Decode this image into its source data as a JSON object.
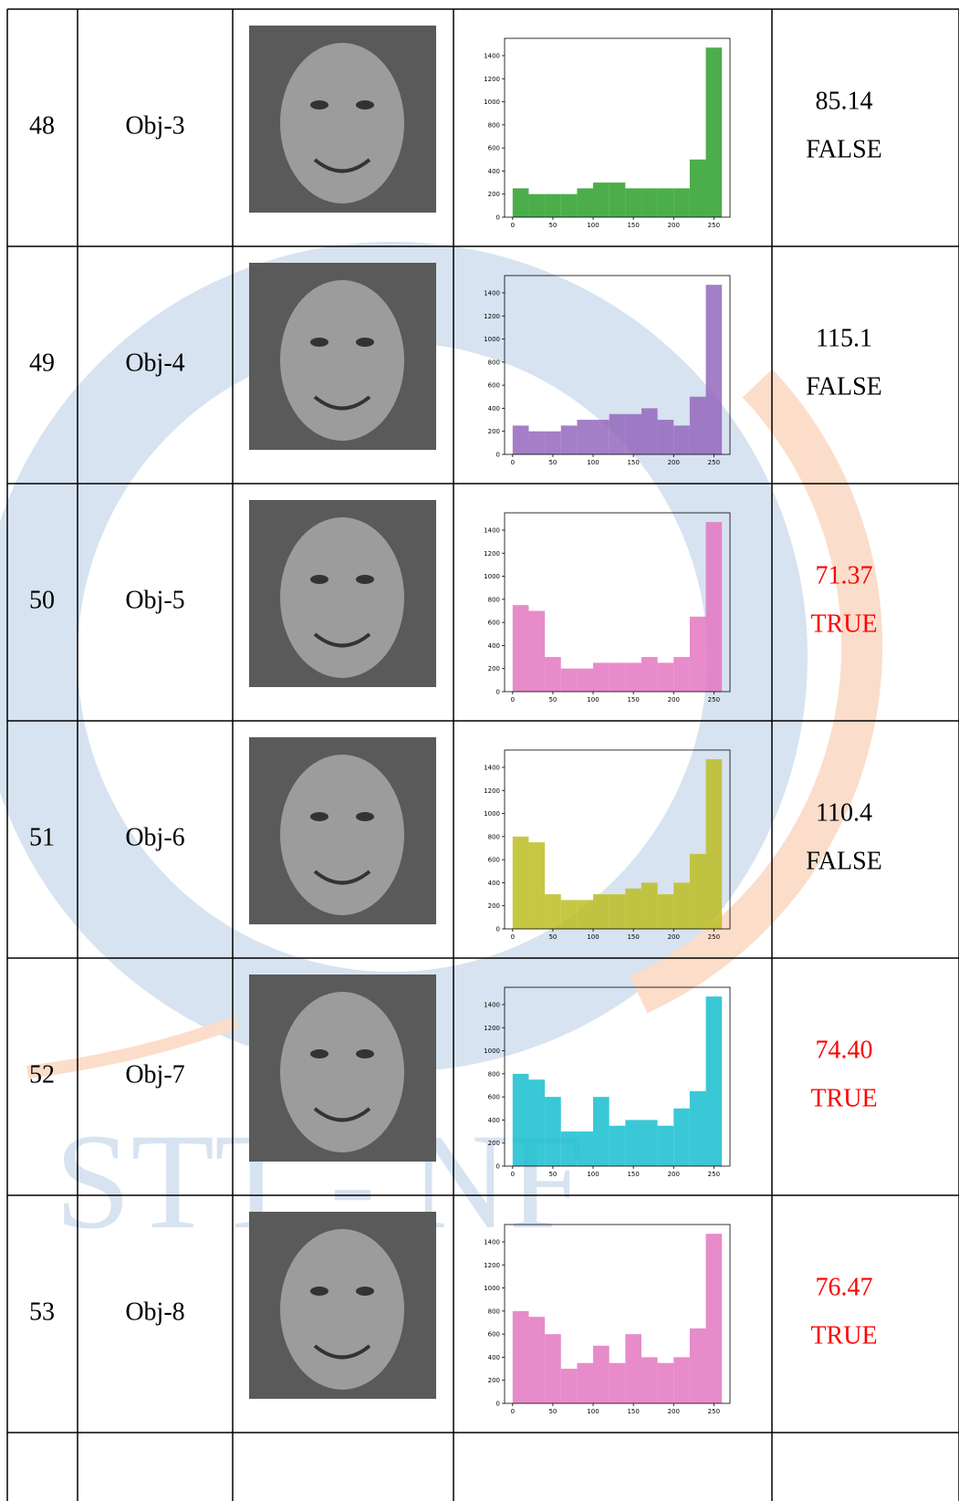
{
  "table": {
    "rows": [
      {
        "no": "48",
        "object": "Obj-3",
        "score": "85.14",
        "result": "FALSE",
        "color": "#000000",
        "histogram": {
          "color": "#2ca02c",
          "counts": [
            250,
            200,
            200,
            200,
            250,
            300,
            300,
            250,
            250,
            250,
            250,
            500,
            1470
          ]
        }
      },
      {
        "no": "49",
        "object": "Obj-4",
        "score": "115.1",
        "result": "FALSE",
        "color": "#000000",
        "histogram": {
          "color": "#9467bd",
          "counts": [
            250,
            200,
            200,
            250,
            300,
            300,
            350,
            350,
            400,
            300,
            250,
            500,
            1470
          ]
        }
      },
      {
        "no": "50",
        "object": "Obj-5",
        "score": "71.37",
        "result": "TRUE",
        "color": "#ff0000",
        "histogram": {
          "color": "#e377c2",
          "counts": [
            750,
            700,
            300,
            200,
            200,
            250,
            250,
            250,
            300,
            250,
            300,
            650,
            1470
          ]
        }
      },
      {
        "no": "51",
        "object": "Obj-6",
        "score": "110.4",
        "result": "FALSE",
        "color": "#000000",
        "histogram": {
          "color": "#bcbd22",
          "counts": [
            800,
            750,
            300,
            250,
            250,
            300,
            300,
            350,
            400,
            300,
            400,
            650,
            1470
          ]
        }
      },
      {
        "no": "52",
        "object": "Obj-7",
        "score": "74.40",
        "result": "TRUE",
        "color": "#ff0000",
        "histogram": {
          "color": "#17becf",
          "counts": [
            800,
            750,
            600,
            300,
            300,
            600,
            350,
            400,
            400,
            350,
            500,
            650,
            1470
          ]
        }
      },
      {
        "no": "53",
        "object": "Obj-8",
        "score": "76.47",
        "result": "TRUE",
        "color": "#ff0000",
        "histogram": {
          "color": "#e377c2",
          "counts": [
            800,
            750,
            600,
            300,
            350,
            500,
            350,
            600,
            400,
            350,
            400,
            650,
            1470
          ]
        }
      }
    ]
  },
  "histogram_axes": {
    "bins": [
      0,
      20,
      40,
      60,
      80,
      100,
      120,
      140,
      160,
      180,
      200,
      220,
      240,
      260
    ],
    "xlim": [
      -10,
      270
    ],
    "ylim": [
      0,
      1550
    ],
    "xticks": [
      0,
      50,
      100,
      150,
      200,
      250
    ],
    "yticks": [
      0,
      200,
      400,
      600,
      800,
      1000,
      1200,
      1400
    ]
  },
  "watermark": "STT - NF"
}
